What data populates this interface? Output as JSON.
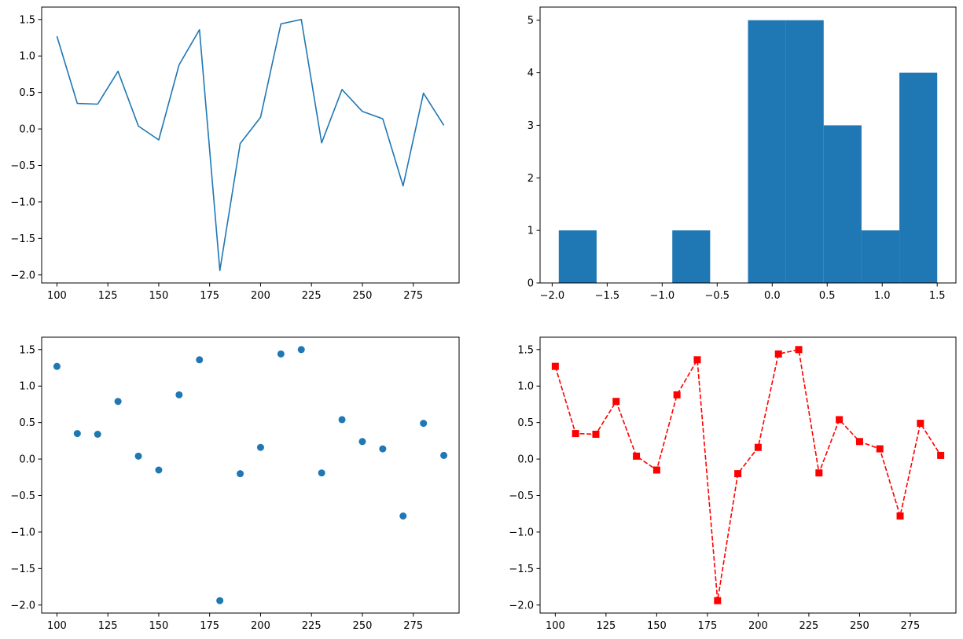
{
  "chart_data": [
    {
      "type": "line",
      "title": "",
      "xlabel": "",
      "ylabel": "",
      "x": [
        100,
        110,
        120,
        130,
        140,
        150,
        160,
        170,
        180,
        190,
        200,
        210,
        220,
        230,
        240,
        250,
        260,
        270,
        280,
        290
      ],
      "series": [
        {
          "values": [
            1.27,
            0.35,
            0.34,
            0.79,
            0.04,
            -0.15,
            0.88,
            1.36,
            -1.94,
            -0.2,
            0.16,
            1.44,
            1.5,
            -0.19,
            0.54,
            0.24,
            0.14,
            -0.78,
            0.49,
            0.05
          ]
        }
      ],
      "xlim": [
        92.5,
        297.5
      ],
      "ylim": [
        -2.11,
        1.67
      ],
      "xticks": [
        100,
        125,
        150,
        175,
        200,
        225,
        250,
        275
      ],
      "yticks": [
        -2.0,
        -1.5,
        -1.0,
        -0.5,
        0.0,
        0.5,
        1.0,
        1.5
      ],
      "xtick_labels": [
        "100",
        "125",
        "150",
        "175",
        "200",
        "225",
        "250",
        "275"
      ],
      "ytick_labels": [
        "−2.0",
        "−1.5",
        "−1.0",
        "−0.5",
        "0.0",
        "0.5",
        "1.0",
        "1.5"
      ],
      "grid": false,
      "color": "#1f77b4",
      "line_style": "solid",
      "marker": "none"
    },
    {
      "type": "bar",
      "subtype": "histogram",
      "title": "",
      "xlabel": "",
      "ylabel": "",
      "bin_edges": [
        -1.94,
        -1.596,
        -1.252,
        -0.908,
        -0.564,
        -0.22,
        0.124,
        0.468,
        0.812,
        1.156,
        1.5
      ],
      "values": [
        1,
        0,
        0,
        1,
        0,
        5,
        5,
        3,
        1,
        4
      ],
      "xlim": [
        -2.11,
        1.67
      ],
      "ylim": [
        0,
        5.25
      ],
      "xticks": [
        -2.0,
        -1.5,
        -1.0,
        -0.5,
        0.0,
        0.5,
        1.0,
        1.5
      ],
      "yticks": [
        0,
        1,
        2,
        3,
        4,
        5
      ],
      "xtick_labels": [
        "−2.0",
        "−1.5",
        "−1.0",
        "−0.5",
        "0.0",
        "0.5",
        "1.0",
        "1.5"
      ],
      "ytick_labels": [
        "0",
        "1",
        "2",
        "3",
        "4",
        "5"
      ],
      "grid": false,
      "color": "#1f77b4"
    },
    {
      "type": "scatter",
      "title": "",
      "xlabel": "",
      "ylabel": "",
      "x": [
        100,
        110,
        120,
        130,
        140,
        150,
        160,
        170,
        180,
        190,
        200,
        210,
        220,
        230,
        240,
        250,
        260,
        270,
        280,
        290
      ],
      "series": [
        {
          "values": [
            1.27,
            0.35,
            0.34,
            0.79,
            0.04,
            -0.15,
            0.88,
            1.36,
            -1.94,
            -0.2,
            0.16,
            1.44,
            1.5,
            -0.19,
            0.54,
            0.24,
            0.14,
            -0.78,
            0.49,
            0.05
          ]
        }
      ],
      "xlim": [
        92.5,
        297.5
      ],
      "ylim": [
        -2.11,
        1.67
      ],
      "xticks": [
        100,
        125,
        150,
        175,
        200,
        225,
        250,
        275
      ],
      "yticks": [
        -2.0,
        -1.5,
        -1.0,
        -0.5,
        0.0,
        0.5,
        1.0,
        1.5
      ],
      "xtick_labels": [
        "100",
        "125",
        "150",
        "175",
        "200",
        "225",
        "250",
        "275"
      ],
      "ytick_labels": [
        "−2.0",
        "−1.5",
        "−1.0",
        "−0.5",
        "0.0",
        "0.5",
        "1.0",
        "1.5"
      ],
      "grid": false,
      "color": "#1f77b4",
      "marker": "circle"
    },
    {
      "type": "line",
      "title": "",
      "xlabel": "",
      "ylabel": "",
      "x": [
        100,
        110,
        120,
        130,
        140,
        150,
        160,
        170,
        180,
        190,
        200,
        210,
        220,
        230,
        240,
        250,
        260,
        270,
        280,
        290
      ],
      "series": [
        {
          "values": [
            1.27,
            0.35,
            0.34,
            0.79,
            0.04,
            -0.15,
            0.88,
            1.36,
            -1.94,
            -0.2,
            0.16,
            1.44,
            1.5,
            -0.19,
            0.54,
            0.24,
            0.14,
            -0.78,
            0.49,
            0.05
          ]
        }
      ],
      "xlim": [
        92.5,
        297.5
      ],
      "ylim": [
        -2.11,
        1.67
      ],
      "xticks": [
        100,
        125,
        150,
        175,
        200,
        225,
        250,
        275
      ],
      "yticks": [
        -2.0,
        -1.5,
        -1.0,
        -0.5,
        0.0,
        0.5,
        1.0,
        1.5
      ],
      "xtick_labels": [
        "100",
        "125",
        "150",
        "175",
        "200",
        "225",
        "250",
        "275"
      ],
      "ytick_labels": [
        "−2.0",
        "−1.5",
        "−1.0",
        "−0.5",
        "0.0",
        "0.5",
        "1.0",
        "1.5"
      ],
      "grid": false,
      "color": "#ff0000",
      "line_style": "dashed",
      "marker": "square"
    }
  ]
}
